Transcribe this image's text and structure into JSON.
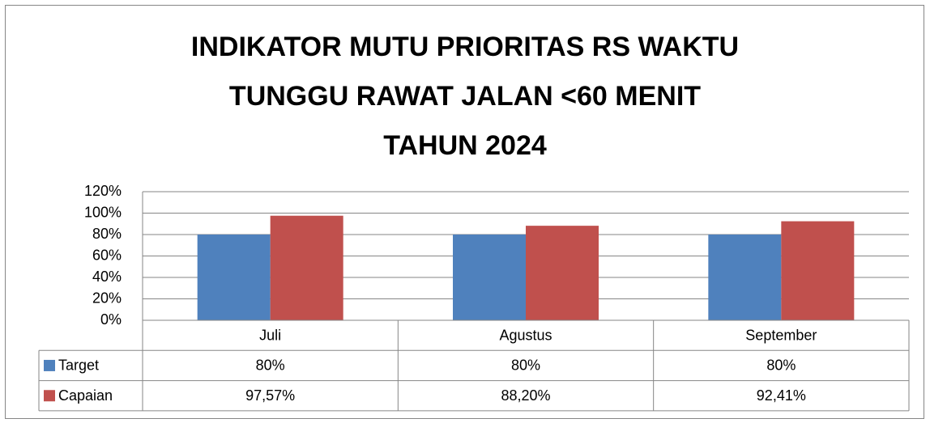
{
  "chart_data": {
    "type": "bar",
    "title": "INDIKATOR MUTU PRIORITAS RS WAKTU\nTUNGGU RAWAT JALAN <60 MENIT\nTAHUN 2024",
    "categories": [
      "Juli",
      "Agustus",
      "September"
    ],
    "series": [
      {
        "name": "Target",
        "color": "#4f81bd",
        "values": [
          80,
          80,
          80
        ],
        "value_labels": [
          "80%",
          "80%",
          "80%"
        ]
      },
      {
        "name": "Capaian",
        "color": "#c0504d",
        "values": [
          97.57,
          88.2,
          92.41
        ],
        "value_labels": [
          "97,57%",
          "88,20%",
          "92,41%"
        ]
      }
    ],
    "ylim": [
      0,
      120
    ],
    "yticks": [
      {
        "value": 0,
        "label": "0%"
      },
      {
        "value": 20,
        "label": "20%"
      },
      {
        "value": 40,
        "label": "40%"
      },
      {
        "value": 60,
        "label": "60%"
      },
      {
        "value": 80,
        "label": "80%"
      },
      {
        "value": 100,
        "label": "100%"
      },
      {
        "value": 120,
        "label": "120%"
      }
    ],
    "grid": true
  }
}
